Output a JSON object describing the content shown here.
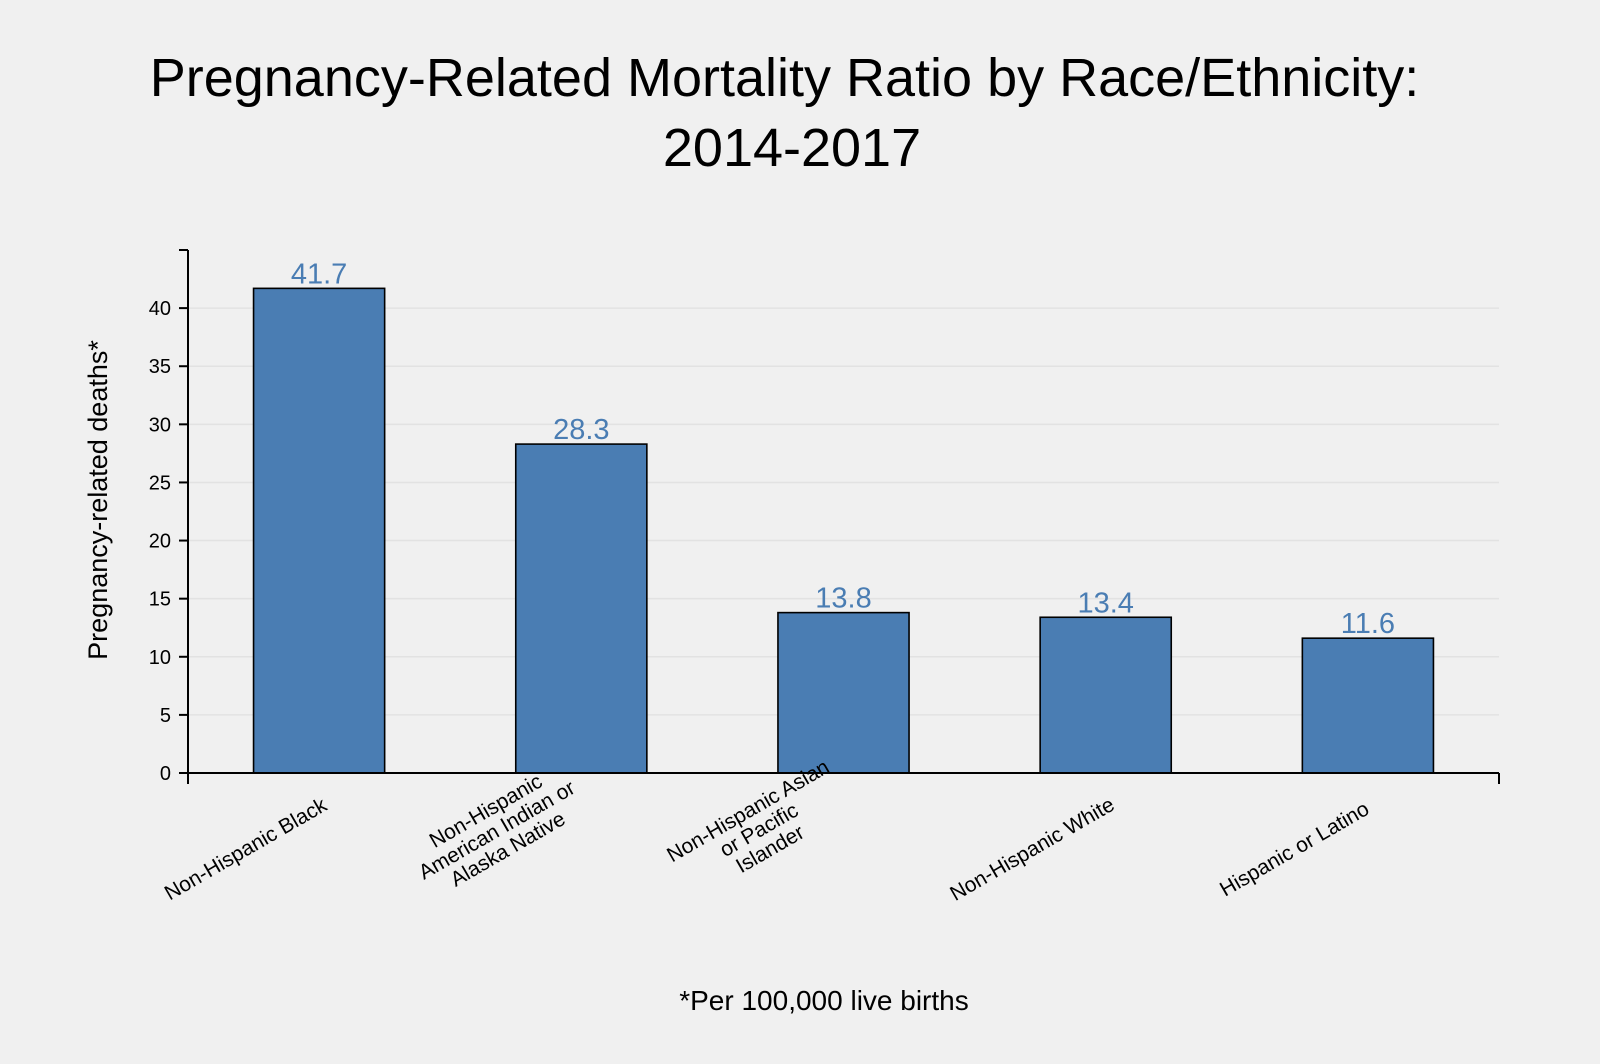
{
  "chart_data": {
    "type": "bar",
    "title": "Pregnancy-Related Mortality Ratio by Race/Ethnicity: 2014-2017",
    "title_lines": [
      "Pregnancy-Related Mortality Ratio by Race/Ethnicity:",
      "2014-2017"
    ],
    "xlabel": "",
    "ylabel": "Pregnancy-related deaths*",
    "footnote": "*Per 100,000 live births",
    "categories": [
      "Non-Hispanic Black",
      "Non-Hispanic American Indian or Alaska Native",
      "Non-Hispanic Asian or Pacific Islander",
      "Non-Hispanic White",
      "Hispanic or Latino"
    ],
    "category_lines": [
      [
        "Non-Hispanic Black"
      ],
      [
        "Non-Hispanic",
        "American Indian or",
        "Alaska Native"
      ],
      [
        "Non-Hispanic Asian",
        "or Pacific",
        "Islander"
      ],
      [
        "Non-Hispanic White"
      ],
      [
        "Hispanic or Latino"
      ]
    ],
    "values": [
      41.7,
      28.3,
      13.8,
      13.4,
      11.6
    ],
    "value_labels": [
      "41.7",
      "28.3",
      "13.8",
      "13.4",
      "11.6"
    ],
    "yticks": [
      0,
      5,
      10,
      15,
      20,
      25,
      30,
      35,
      40
    ],
    "ytick_labels": [
      "0",
      "5",
      "10",
      "15",
      "20",
      "25",
      "30",
      "35",
      "40"
    ],
    "ylim": [
      0,
      45
    ],
    "grid": true,
    "legend": "none",
    "colors": {
      "bar": "#4a7db3",
      "value_label": "#4a7db3",
      "background": "#f0f0f0"
    }
  }
}
